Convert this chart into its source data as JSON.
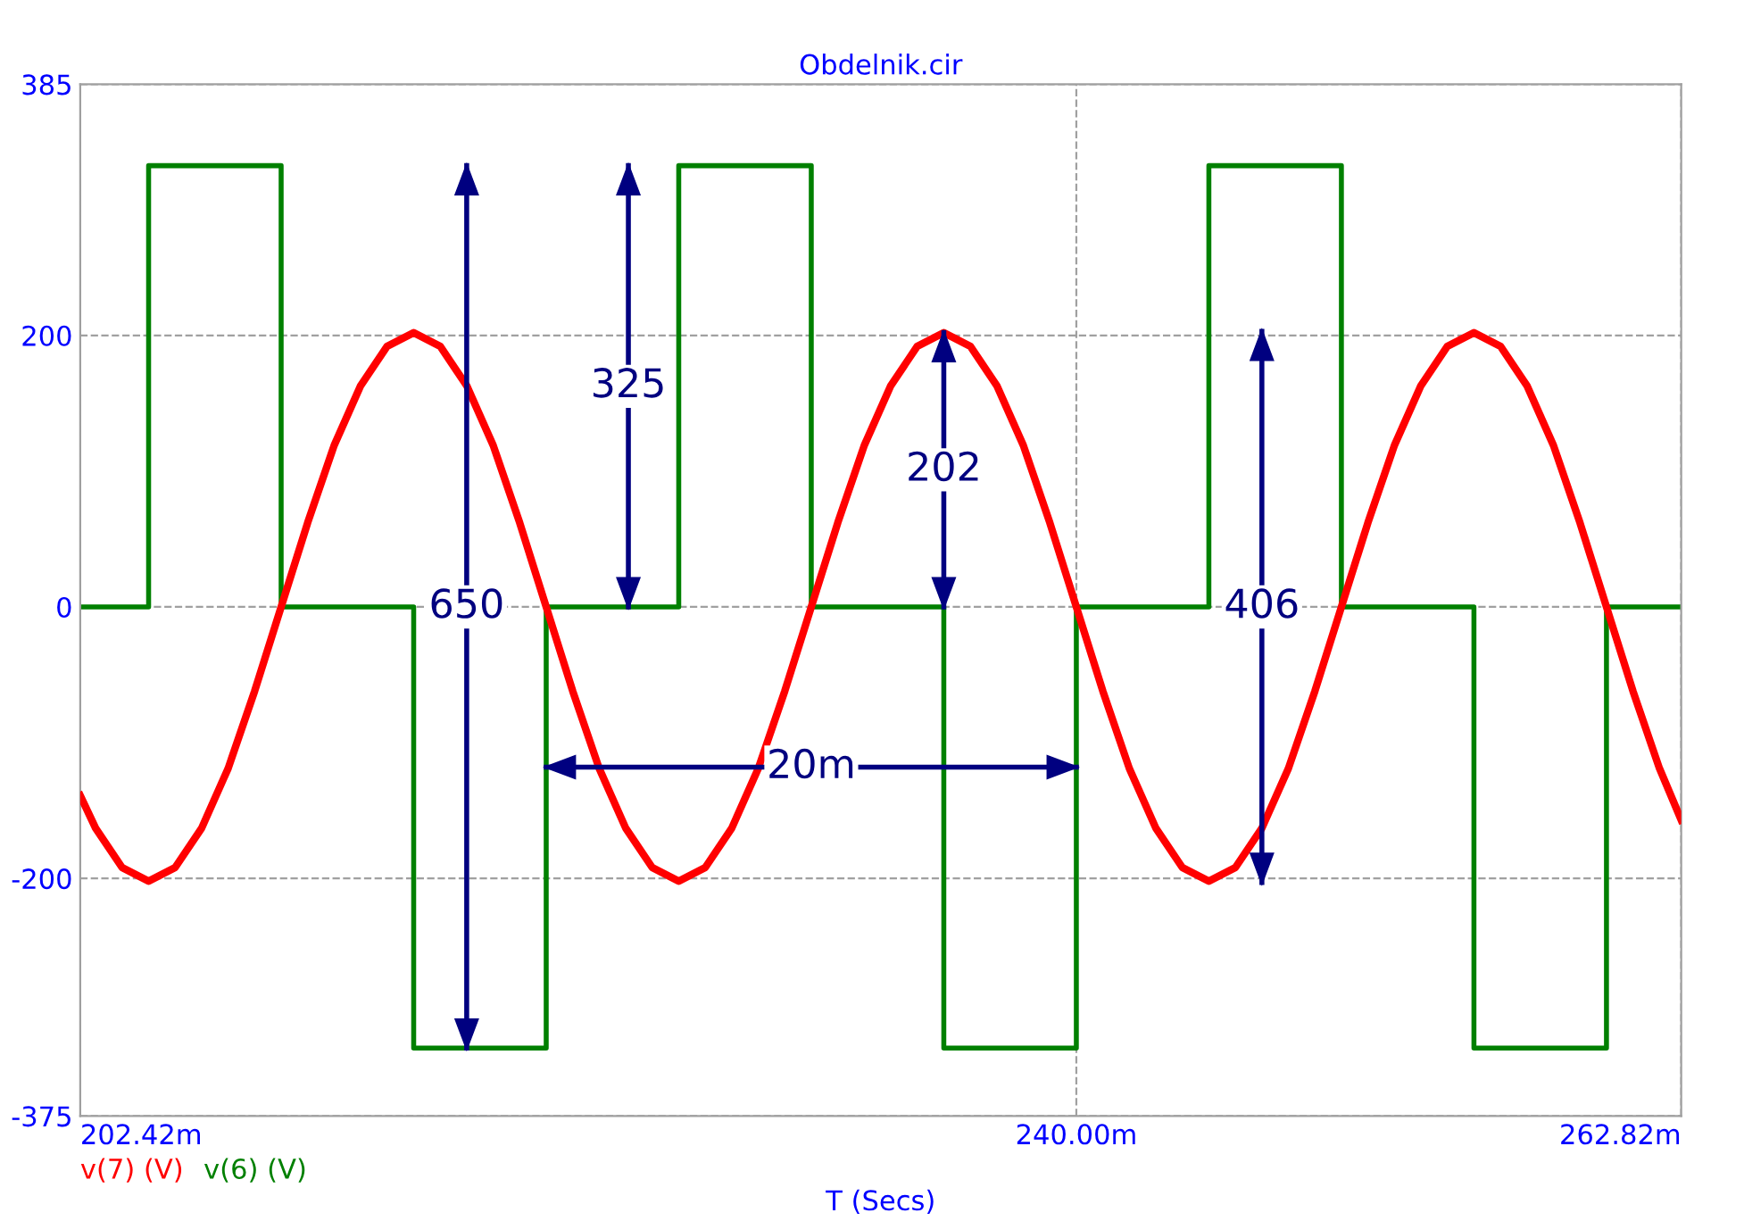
{
  "chart_data": {
    "type": "line",
    "title": "Obdelnik.cir",
    "xlabel": "T (Secs)",
    "xlim": [
      202.42,
      262.82
    ],
    "xticks": [
      {
        "value": 202.42,
        "label": "202.42m"
      },
      {
        "value": 240,
        "label": "240.00m"
      },
      {
        "value": 262.82,
        "label": "262.82m"
      }
    ],
    "ylim": [
      -375,
      385
    ],
    "yticks": [
      -375,
      -200,
      0,
      200,
      385
    ],
    "grid": true,
    "legend": "bottom left",
    "series": [
      {
        "name": "v(7) (V)",
        "color": "#ff0000",
        "x": [
          202.42,
          203,
          204,
          205,
          206,
          207,
          208,
          209,
          210,
          211,
          212,
          213,
          214,
          215,
          216,
          217,
          218,
          219,
          220,
          221,
          222,
          223,
          224,
          225,
          226,
          227,
          228,
          229,
          230,
          231,
          232,
          233,
          234,
          235,
          236,
          237,
          238,
          239,
          240,
          241,
          242,
          243,
          244,
          245,
          246,
          247,
          248,
          249,
          250,
          251,
          252,
          253,
          254,
          255,
          256,
          257,
          258,
          259,
          260,
          261,
          262,
          262.82
        ],
        "values": [
          -139,
          -163,
          -192,
          -202,
          -192,
          -163,
          -119,
          -62,
          0,
          62,
          119,
          163,
          192,
          202,
          192,
          163,
          119,
          62,
          0,
          -62,
          -119,
          -163,
          -192,
          -202,
          -192,
          -163,
          -119,
          -62,
          0,
          62,
          119,
          163,
          192,
          202,
          192,
          163,
          119,
          62,
          0,
          -62,
          -119,
          -163,
          -192,
          -202,
          -192,
          -163,
          -119,
          -62,
          0,
          62,
          119,
          163,
          192,
          202,
          192,
          163,
          119,
          62,
          0,
          -62,
          -119,
          -157
        ]
      },
      {
        "name": "v(6) (V)",
        "color": "#008000",
        "type": "step",
        "x": [
          202.42,
          205,
          210,
          215,
          220,
          225,
          230,
          235,
          240,
          245,
          250,
          255,
          260,
          262.82
        ],
        "values": [
          0,
          325,
          0,
          -325,
          0,
          325,
          0,
          -325,
          0,
          325,
          0,
          -325,
          0,
          0
        ]
      },
      {
        "name": "650",
        "color": "#000080",
        "x": [
          217,
          217
        ],
        "values": [
          325,
          -325
        ]
      },
      {
        "name": "325",
        "color": "#000080",
        "x": [
          223.1,
          223.1
        ],
        "values": [
          325,
          0
        ]
      },
      {
        "name": "202",
        "color": "#000080",
        "x": [
          235,
          235
        ],
        "values": [
          202,
          0
        ]
      },
      {
        "name": "406",
        "color": "#000080",
        "x": [
          247,
          247
        ],
        "values": [
          203,
          -203
        ]
      },
      {
        "name": "20m",
        "color": "#000080",
        "x": [
          220,
          240
        ],
        "values": [
          -118,
          -118
        ]
      }
    ]
  }
}
